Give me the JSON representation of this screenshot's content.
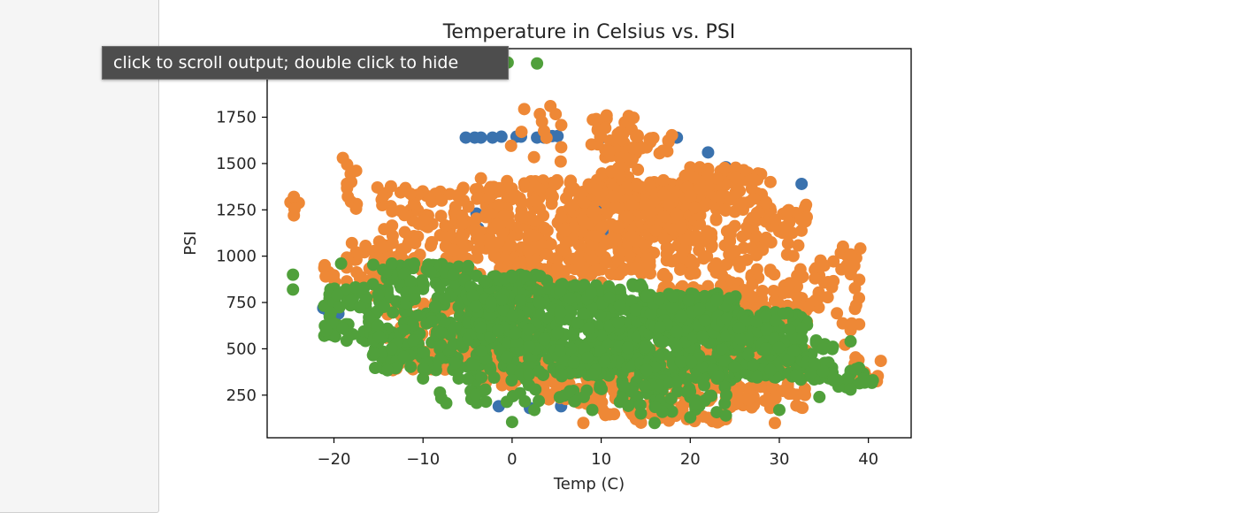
{
  "tooltip": {
    "text": "click to scroll output; double click to hide"
  },
  "colors": {
    "series_blue": "#3a72ae",
    "series_orange": "#ee8836",
    "series_green": "#50a03b",
    "axis": "#000000"
  },
  "chart_data": {
    "type": "scatter",
    "title": "Temperature in Celsius vs. PSI",
    "xlabel": "Temp (C)",
    "ylabel": "PSI",
    "xlim": [
      -27.5,
      44.8
    ],
    "ylim": [
      20,
      2120
    ],
    "xticks": [
      -20,
      -10,
      0,
      10,
      20,
      30,
      40
    ],
    "xtick_labels": [
      "−20",
      "−10",
      "0",
      "10",
      "20",
      "30",
      "40"
    ],
    "yticks": [
      250,
      500,
      750,
      1000,
      1250,
      1500,
      1750
    ],
    "ytick_labels": [
      "250",
      "500",
      "750",
      "1000",
      "1250",
      "1500",
      "1750"
    ],
    "grid": false,
    "series": [
      {
        "color": "#3a72ae",
        "points": [
          [
            -5.2,
            1640
          ],
          [
            -4.2,
            1640
          ],
          [
            -3.5,
            1640
          ],
          [
            -2.2,
            1640
          ],
          [
            -1.2,
            1645
          ],
          [
            0.5,
            1645
          ],
          [
            1,
            1645
          ],
          [
            2.8,
            1640
          ],
          [
            3.6,
            1640
          ],
          [
            4.5,
            1648
          ],
          [
            5.1,
            1648
          ],
          [
            10,
            1640
          ],
          [
            12,
            1600
          ],
          [
            18,
            1640
          ],
          [
            18.5,
            1640
          ],
          [
            22,
            1560
          ],
          [
            24,
            1480
          ],
          [
            32.5,
            1390
          ],
          [
            -4,
            1230
          ],
          [
            -3.8,
            1150
          ],
          [
            -3.6,
            1080
          ],
          [
            1.8,
            1200
          ],
          [
            10,
            1250
          ],
          [
            10.5,
            1150
          ],
          [
            11,
            1100
          ],
          [
            -21.2,
            720
          ],
          [
            -20.6,
            700
          ],
          [
            -19.5,
            690
          ],
          [
            -1.5,
            190
          ],
          [
            2,
            180
          ],
          [
            5.5,
            190
          ],
          [
            9,
            200
          ],
          [
            12,
            230
          ],
          [
            -10,
            930
          ],
          [
            -7,
            900
          ]
        ]
      },
      {
        "color": "#ee8836",
        "regions": [
          {
            "x": [
              -25,
              -24.2
            ],
            "y": [
              1220,
              1320
            ],
            "n": 4
          },
          {
            "x": [
              -21.5,
              -20
            ],
            "y": [
              850,
              960
            ],
            "n": 6
          },
          {
            "x": [
              -19,
              -17.5
            ],
            "y": [
              1250,
              1530
            ],
            "n": 10
          },
          {
            "x": [
              -18.5,
              -14
            ],
            "y": [
              780,
              1080
            ],
            "n": 30
          },
          {
            "x": [
              -15,
              -3
            ],
            "y": [
              900,
              1380
            ],
            "n": 140
          },
          {
            "x": [
              -14,
              -3
            ],
            "y": [
              380,
              760
            ],
            "n": 120
          },
          {
            "x": [
              -3,
              3
            ],
            "y": [
              300,
              1410
            ],
            "n": 260
          },
          {
            "x": [
              -1,
              6
            ],
            "y": [
              1500,
              1810
            ],
            "n": 12
          },
          {
            "x": [
              2,
              10
            ],
            "y": [
              850,
              1410
            ],
            "n": 170
          },
          {
            "x": [
              3,
              10
            ],
            "y": [
              200,
              520
            ],
            "n": 110
          },
          {
            "x": [
              9,
              14
            ],
            "y": [
              1300,
              1760
            ],
            "n": 80
          },
          {
            "x": [
              9,
              16
            ],
            "y": [
              900,
              1400
            ],
            "n": 160
          },
          {
            "x": [
              13,
              18
            ],
            "y": [
              1550,
              1660
            ],
            "n": 15
          },
          {
            "x": [
              15,
              20
            ],
            "y": [
              1100,
              1400
            ],
            "n": 100
          },
          {
            "x": [
              17,
              28
            ],
            "y": [
              600,
              1480
            ],
            "n": 260
          },
          {
            "x": [
              10,
              25
            ],
            "y": [
              100,
              520
            ],
            "n": 190
          },
          {
            "x": [
              20,
              27
            ],
            "y": [
              1250,
              1480
            ],
            "n": 40
          },
          {
            "x": [
              27,
              33
            ],
            "y": [
              620,
              1300
            ],
            "n": 90
          },
          {
            "x": [
              24,
              33
            ],
            "y": [
              180,
              500
            ],
            "n": 110
          },
          {
            "x": [
              33,
              36
            ],
            "y": [
              700,
              980
            ],
            "n": 20
          },
          {
            "x": [
              36,
              39.5
            ],
            "y": [
              520,
              1060
            ],
            "n": 22
          },
          {
            "x": [
              38,
              41.5
            ],
            "y": [
              280,
              460
            ],
            "n": 14
          }
        ],
        "points": [
          [
            -24.5,
            1320
          ],
          [
            -24.5,
            1220
          ],
          [
            -19,
            1530
          ],
          [
            4.3,
            1810
          ],
          [
            -3.5,
            1420
          ],
          [
            23,
            1420
          ],
          [
            29,
            1400
          ],
          [
            34,
            880
          ],
          [
            38,
            1010
          ],
          [
            8,
            100
          ],
          [
            20.5,
            110
          ],
          [
            24,
            120
          ],
          [
            29.5,
            100
          ]
        ]
      },
      {
        "color": "#50a03b",
        "regions": [
          {
            "x": [
              -21,
              -16
            ],
            "y": [
              540,
              840
            ],
            "n": 50
          },
          {
            "x": [
              -16,
              -5
            ],
            "y": [
              380,
              960
            ],
            "n": 220
          },
          {
            "x": [
              -5,
              5
            ],
            "y": [
              380,
              900
            ],
            "n": 300
          },
          {
            "x": [
              5,
              15
            ],
            "y": [
              350,
              850
            ],
            "n": 300
          },
          {
            "x": [
              15,
              25
            ],
            "y": [
              330,
              800
            ],
            "n": 280
          },
          {
            "x": [
              25,
              33
            ],
            "y": [
              330,
              700
            ],
            "n": 160
          },
          {
            "x": [
              33,
              36
            ],
            "y": [
              330,
              580
            ],
            "n": 30
          },
          {
            "x": [
              36,
              41
            ],
            "y": [
              280,
              400
            ],
            "n": 16
          },
          {
            "x": [
              -8,
              12
            ],
            "y": [
              200,
              380
            ],
            "n": 40
          },
          {
            "x": [
              12,
              25
            ],
            "y": [
              150,
              330
            ],
            "n": 50
          }
        ],
        "points": [
          [
            -24.6,
            900
          ],
          [
            -24.6,
            820
          ],
          [
            -19.2,
            960
          ],
          [
            -0.5,
            2045
          ],
          [
            2.8,
            2040
          ],
          [
            -3,
            280
          ],
          [
            -6,
            340
          ],
          [
            -10,
            340
          ],
          [
            0,
            105
          ],
          [
            2.5,
            170
          ],
          [
            9,
            170
          ],
          [
            16,
            100
          ],
          [
            20,
            130
          ],
          [
            24,
            140
          ],
          [
            30,
            170
          ],
          [
            38,
            540
          ],
          [
            34.5,
            240
          ],
          [
            38,
            280
          ],
          [
            40.5,
            330
          ],
          [
            -13.5,
            960
          ],
          [
            -11,
            960
          ]
        ]
      }
    ]
  }
}
